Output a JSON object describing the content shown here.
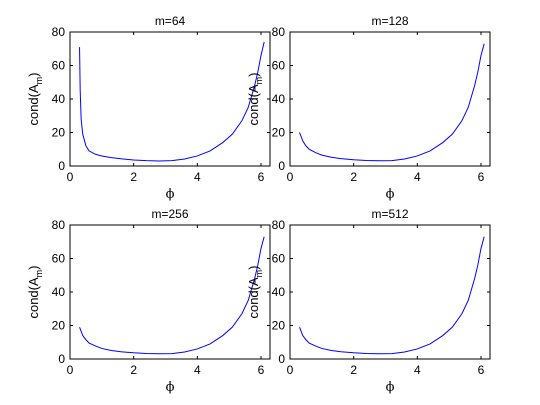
{
  "chart_data": [
    {
      "type": "line",
      "title": "m=64",
      "xlabel": "ϕ",
      "ylabel": {
        "main": "cond(A",
        "sub": "m",
        "close": ")"
      },
      "xlim": [
        0,
        6.2832
      ],
      "ylim": [
        0,
        80
      ],
      "xticks": [
        0,
        2,
        4,
        6
      ],
      "yticks": [
        0,
        20,
        40,
        60,
        80
      ],
      "series": [
        {
          "color": "#0000ff",
          "x": [
            0.3,
            0.32,
            0.35,
            0.4,
            0.5,
            0.6,
            0.8,
            1.0,
            1.3,
            1.6,
            2.0,
            2.4,
            2.8,
            3.2,
            3.6,
            4.0,
            4.4,
            4.8,
            5.1,
            5.4,
            5.6,
            5.8,
            5.9,
            6.0,
            6.1
          ],
          "y": [
            71,
            45,
            28,
            19,
            12,
            9,
            7,
            6,
            5,
            4.3,
            3.6,
            3.2,
            3.0,
            3.2,
            4.2,
            6,
            9,
            14,
            19,
            27,
            35,
            48,
            56,
            66,
            74
          ]
        }
      ]
    },
    {
      "type": "line",
      "title": "m=128",
      "xlabel": "ϕ",
      "ylabel": {
        "main": "cond(A",
        "sub": "m",
        "close": ")"
      },
      "xlim": [
        0,
        6.2832
      ],
      "ylim": [
        0,
        80
      ],
      "xticks": [
        0,
        2,
        4,
        6
      ],
      "yticks": [
        0,
        20,
        40,
        60,
        80
      ],
      "series": [
        {
          "color": "#0000ff",
          "x": [
            0.3,
            0.4,
            0.5,
            0.6,
            0.8,
            1.0,
            1.3,
            1.6,
            2.0,
            2.4,
            2.8,
            3.2,
            3.6,
            4.0,
            4.4,
            4.8,
            5.1,
            5.4,
            5.6,
            5.8,
            5.9,
            6.0,
            6.1
          ],
          "y": [
            20,
            15,
            12,
            10,
            8,
            6.5,
            5.2,
            4.4,
            3.7,
            3.3,
            3.1,
            3.2,
            4.2,
            6,
            9,
            14,
            19,
            27,
            35,
            48,
            56,
            66,
            73
          ]
        }
      ]
    },
    {
      "type": "line",
      "title": "m=256",
      "xlabel": "ϕ",
      "ylabel": {
        "main": "cond(A",
        "sub": "m",
        "close": ")"
      },
      "xlim": [
        0,
        6.2832
      ],
      "ylim": [
        0,
        80
      ],
      "xticks": [
        0,
        2,
        4,
        6
      ],
      "yticks": [
        0,
        20,
        40,
        60,
        80
      ],
      "series": [
        {
          "color": "#0000ff",
          "x": [
            0.3,
            0.4,
            0.5,
            0.6,
            0.8,
            1.0,
            1.3,
            1.6,
            2.0,
            2.4,
            2.8,
            3.2,
            3.6,
            4.0,
            4.4,
            4.8,
            5.1,
            5.4,
            5.6,
            5.8,
            5.9,
            6.0,
            6.1
          ],
          "y": [
            19,
            14,
            11.5,
            9.5,
            7.8,
            6.3,
            5.1,
            4.3,
            3.7,
            3.3,
            3.1,
            3.2,
            4.2,
            6,
            9,
            14,
            19,
            27,
            35,
            48,
            56,
            66,
            73
          ]
        }
      ]
    },
    {
      "type": "line",
      "title": "m=512",
      "xlabel": "ϕ",
      "ylabel": {
        "main": "cond(A",
        "sub": "m",
        "close": ")"
      },
      "xlim": [
        0,
        6.2832
      ],
      "ylim": [
        0,
        80
      ],
      "xticks": [
        0,
        2,
        4,
        6
      ],
      "yticks": [
        0,
        20,
        40,
        60,
        80
      ],
      "series": [
        {
          "color": "#0000ff",
          "x": [
            0.3,
            0.4,
            0.5,
            0.6,
            0.8,
            1.0,
            1.3,
            1.6,
            2.0,
            2.4,
            2.8,
            3.2,
            3.6,
            4.0,
            4.4,
            4.8,
            5.1,
            5.4,
            5.6,
            5.8,
            5.9,
            6.0,
            6.1
          ],
          "y": [
            19,
            14,
            11.5,
            9.5,
            7.8,
            6.3,
            5.1,
            4.3,
            3.7,
            3.3,
            3.1,
            3.2,
            4.2,
            6,
            9,
            14,
            19,
            27,
            35,
            48,
            56,
            66,
            73
          ]
        }
      ]
    }
  ]
}
